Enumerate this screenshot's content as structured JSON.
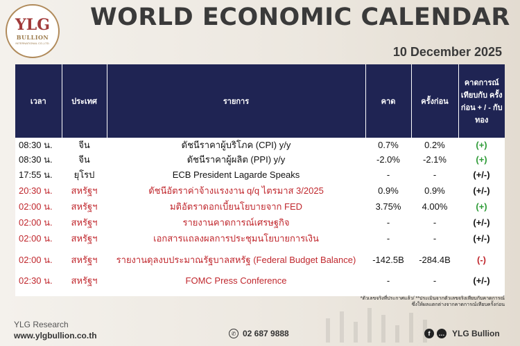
{
  "logo": {
    "main": "YLG",
    "sub": "BULLION",
    "tiny": "INTERNATIONAL CO.,LTD."
  },
  "header": {
    "title": "WORLD ECONOMIC CALENDAR",
    "date": "10 December 2025"
  },
  "columns": {
    "time": "เวลา",
    "country": "ประเทศ",
    "item": "รายการ",
    "forecast": "คาด",
    "previous": "ครั้งก่อน",
    "impact": "คาดการณ์ เทียบกับ ครั้งก่อน + / - กับทอง"
  },
  "rows": [
    {
      "time": "08:30 น.",
      "country": "จีน",
      "item": "ดัชนีราคาผู้บริโภค (CPI) y/y",
      "forecast": "0.7%",
      "previous": "0.2%",
      "impact": "(+)"
    },
    {
      "time": "08:30 น.",
      "country": "จีน",
      "item": "ดัชนีราคาผู้ผลิต (PPI) y/y",
      "forecast": "-2.0%",
      "previous": "-2.1%",
      "impact": "(+)"
    },
    {
      "time": "17:55 น.",
      "country": "ยุโรป",
      "item": "ECB President Lagarde Speaks",
      "forecast": "-",
      "previous": "-",
      "impact": "(+/-)"
    },
    {
      "time": "20:30 น.",
      "country": "สหรัฐฯ",
      "item": "ดัชนีอัตราค่าจ้างแรงงาน q/q ไตรมาส 3/2025",
      "forecast": "0.9%",
      "previous": "0.9%",
      "impact": "(+/-)"
    },
    {
      "time": "02:00 น.",
      "country": "สหรัฐฯ",
      "item": "มติอัตราดอกเบี้ยนโยบายจาก FED",
      "forecast": "3.75%",
      "previous": "4.00%",
      "impact": "(+)"
    },
    {
      "time": "02:00 น.",
      "country": "สหรัฐฯ",
      "item": "รายงานคาดการณ์เศรษฐกิจ",
      "forecast": "-",
      "previous": "-",
      "impact": "(+/-)"
    },
    {
      "time": "02:00 น.",
      "country": "สหรัฐฯ",
      "item": "เอกสารแถลงผลการประชุมนโยบายการเงิน",
      "forecast": "-",
      "previous": "-",
      "impact": "(+/-)"
    },
    {
      "time": "02:00 น.",
      "country": "สหรัฐฯ",
      "item": "รายงานดุลงบประมาณรัฐบาลสหรัฐ (Federal Budget Balance)",
      "forecast": "-142.5B",
      "previous": "-284.4B",
      "impact": "(-)"
    },
    {
      "time": "02:30 น.",
      "country": "สหรัฐฯ",
      "item": "FOMC Press Conference",
      "forecast": "-",
      "previous": "-",
      "impact": "(+/-)"
    }
  ],
  "note": {
    "line1": "*ตัวเลขจริงที่ประกาศแล้ว/ **ประเมินจากตัวเลขจริงเทียบกับคาดการณ์",
    "line2": "ซึ่งให้ผลแตกต่างจากคาดการณ์เทียบครั้งก่อน"
  },
  "footer": {
    "brand": "YLG Research",
    "url": "www.ylgbullion.co.th",
    "phone": "02 687 9888",
    "social": "YLG Bullion"
  },
  "colors": {
    "header_bg": "#1f2453",
    "red_text": "#c0272d",
    "green_sign": "#2e9b37"
  }
}
